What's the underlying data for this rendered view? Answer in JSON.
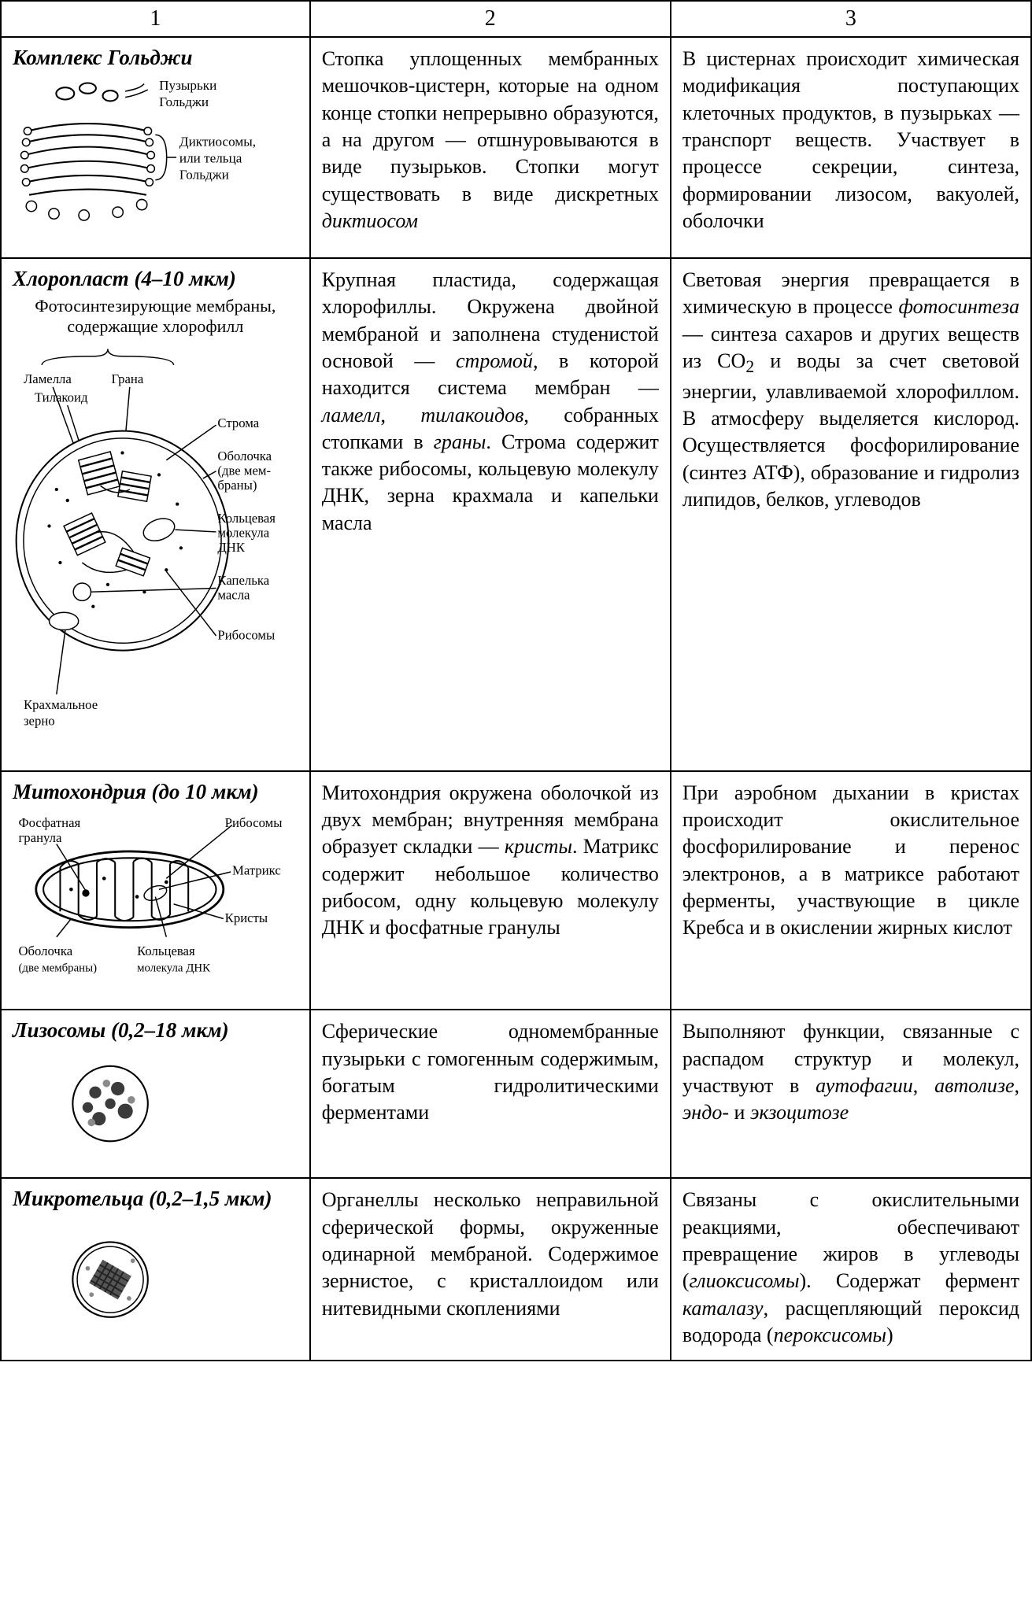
{
  "header": {
    "c1": "1",
    "c2": "2",
    "c3": "3"
  },
  "rows": [
    {
      "title": "Комплекс Гольджи",
      "labels": {
        "g1": "Пузырьки",
        "g2": "Гольджи",
        "g3": "Диктиосомы,",
        "g4": "или тельца",
        "g5": "Гольджи"
      },
      "col2": "Стопка уплощенных мем­бранных мешочков-цис­терн, которые на одном конце стопки непрерыв­но образуются, а на дру­гом — отшнуровываются в виде пузырьков. Стопки могут существовать в виде дискретных <i>диктиосом</i>",
      "col3": "В цистернах происходит хи­мическая модификация по­ступающих клеточных про­дуктов, в пузырьках — транспорт веществ. Уча­ствует в процессе секреции, синтеза, формировании ли­зосом, вакуолей, оболочки"
    },
    {
      "title": "Хлоропласт (4–10 мкм)",
      "sub": "Фотосинтезирующие мембраны, содержащие хлорофилл",
      "labels": {
        "c1": "Ламелла",
        "c2": "Грана",
        "c3": "Тилакоид",
        "c4": "Строма",
        "c5": "Оболочка",
        "c5b": "(две мем-",
        "c5c": "браны)",
        "c6a": "Кольцевая",
        "c6b": "молекула",
        "c6c": "ДНК",
        "c7a": "Капелька",
        "c7b": "масла",
        "c8": "Рибосомы",
        "c9a": "Крахмальное",
        "c9b": "зерно"
      },
      "col2": "Крупная пластида, содер­жащая хлорофиллы. Ок­ружена двойной мембра­ной и заполнена студени­стой основой — <i>стромой</i>, в которой находится сис­тема мембран — <i>ламелл</i>, <i>тилакоидов</i>, собранных стопками в <i>граны</i>. Строма содержит также рибосо­мы, кольцевую молекулу ДНК, зерна крахмала и капельки масла",
      "col3": "Световая энергия превра­щается в химическую в процессе <i>фотосинтеза</i> — синтеза сахаров и других веществ из CO<sub>2</sub> и воды за счет световой энергии, улавливаемой хлорофил­лом. В атмосферу выделя­ется кислород. Осуществ­ляется фосфорилирование (синтез АТФ), образова­ние и гидролиз липидов, белков, углеводов"
    },
    {
      "title": "Митохондрия (до 10 мкм)",
      "labels": {
        "m1a": "Фосфатная",
        "m1b": "гранула",
        "m2": "Рибосомы",
        "m3": "Матрикс",
        "m4": "Кристы",
        "m5a": "Оболочка",
        "m5b": "(две мембраны)",
        "m6a": "Кольцевая",
        "m6b": "молекула ДНК"
      },
      "col2": "Митохондрия окружена оболочкой из двух мемб­ран; внутренняя мембрана образует складки — <i>крис­ты</i>. Матрикс содержит небольшое количество рибосом, одну кольцевую молекулу ДНК и фосфат­ные гранулы",
      "col3": "При аэробном дыхании в кристах происходит оки­слительное фосфорилиро­вание и перенос электро­нов, а в матриксе работают ферменты, участвующие в цикле Кребса и в окисле­нии жирных кислот"
    },
    {
      "title": "Лизосомы (0,2–18 мкм)",
      "col2": "Сферические одномемб­ранные пузырьки с гомо­генным содержимым, бо­гатым гидролитическими ферментами",
      "col3": "Выполняют функции, свя­занные с распадом структур и молекул, участвуют в <i>ау­тофагии</i>, <i>автолизе</i>, <i>эндо-</i> и <i>экзоцитозе</i>"
    },
    {
      "title": "Микротельца (0,2–1,5 мкм)",
      "col2": "Органеллы несколько не­правильной сферической формы, окруженные оди­нарной мембраной. Содер­жимое зернистое, с крис­таллоидом или нитевид­ными скоплениями",
      "col3": "Связаны с окислительными реакциями, обеспечивают превращение жиров в углеводы (<i>глиоксисомы</i>). Содер­жат фермент <i>каталазу</i>, рас­щепляющий пероксид во­дорода (<i>пероксисомы</i>)"
    }
  ]
}
